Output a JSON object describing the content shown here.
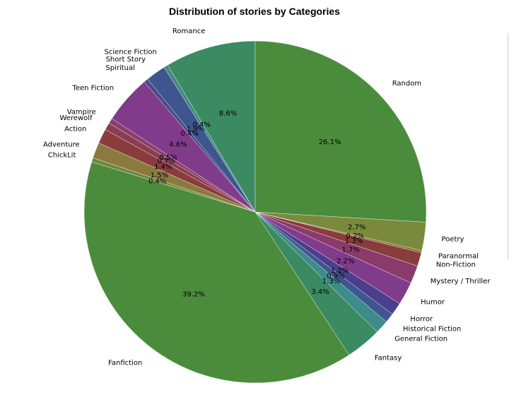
{
  "chart_data": {
    "type": "pie",
    "title": "Distribution of stories by Categories",
    "start_angle_deg": 90,
    "counterclockwise": true,
    "slices": [
      {
        "label": "Romance",
        "value": 8.6,
        "pct_label": "8.6%",
        "color": "#3b8a62"
      },
      {
        "label": "Science Fiction",
        "value": 0.4,
        "pct_label": "0.4%",
        "color": "#3e8c84"
      },
      {
        "label": "Short Story",
        "value": 1.9,
        "pct_label": "1.9%",
        "color": "#3f5590"
      },
      {
        "label": "Spiritual",
        "value": 0.4,
        "pct_label": "0.4%",
        "color": "#4a4a8a"
      },
      {
        "label": "Teen Fiction",
        "value": 4.6,
        "pct_label": "4.6%",
        "color": "#813b8b"
      },
      {
        "label": "Vampire",
        "value": 0.5,
        "pct_label": "0.5%",
        "color": "#8a3f6a"
      },
      {
        "label": "Werewolf",
        "value": 0.7,
        "pct_label": "0.7%",
        "color": "#8a3d4f"
      },
      {
        "label": "Action",
        "value": 1.4,
        "pct_label": "1.4%",
        "color": "#8a3c3c"
      },
      {
        "label": "Adventure",
        "value": 1.5,
        "pct_label": "1.5%",
        "color": "#8a7a3e"
      },
      {
        "label": "ChickLit",
        "value": 0.4,
        "pct_label": "0.4%",
        "color": "#6f873c"
      },
      {
        "label": "Fanfiction",
        "value": 39.2,
        "pct_label": "39.2%",
        "color": "#4a8c3c"
      },
      {
        "label": "Fantasy",
        "value": 3.4,
        "pct_label": "3.4%",
        "color": "#3b8a62"
      },
      {
        "label": "General Fiction",
        "value": 1.3,
        "pct_label": "1.3%",
        "color": "#3e8c8a"
      },
      {
        "label": "Historical Fiction",
        "value": 0.9,
        "pct_label": "0.9%",
        "color": "#3f5590"
      },
      {
        "label": "Horror",
        "value": 1.2,
        "pct_label": "1.2%",
        "color": "#4a3f8c"
      },
      {
        "label": "Humor",
        "value": 2.2,
        "pct_label": "2.2%",
        "color": "#813b8b"
      },
      {
        "label": "Mystery / Thriller",
        "value": 1.7,
        "pct_label": "1.7%",
        "color": "#8a3b6a"
      },
      {
        "label": "Non-Fiction",
        "value": 1.3,
        "pct_label": "1.3%",
        "color": "#8a3c3c"
      },
      {
        "label": "Paranormal",
        "value": 0.2,
        "pct_label": "0.2%",
        "color": "#8a6a3c"
      },
      {
        "label": "Poetry",
        "value": 2.7,
        "pct_label": "2.7%",
        "color": "#7a8a3c"
      },
      {
        "label": "Random",
        "value": 26.1,
        "pct_label": "26.1%",
        "color": "#4a8c3c"
      }
    ]
  }
}
